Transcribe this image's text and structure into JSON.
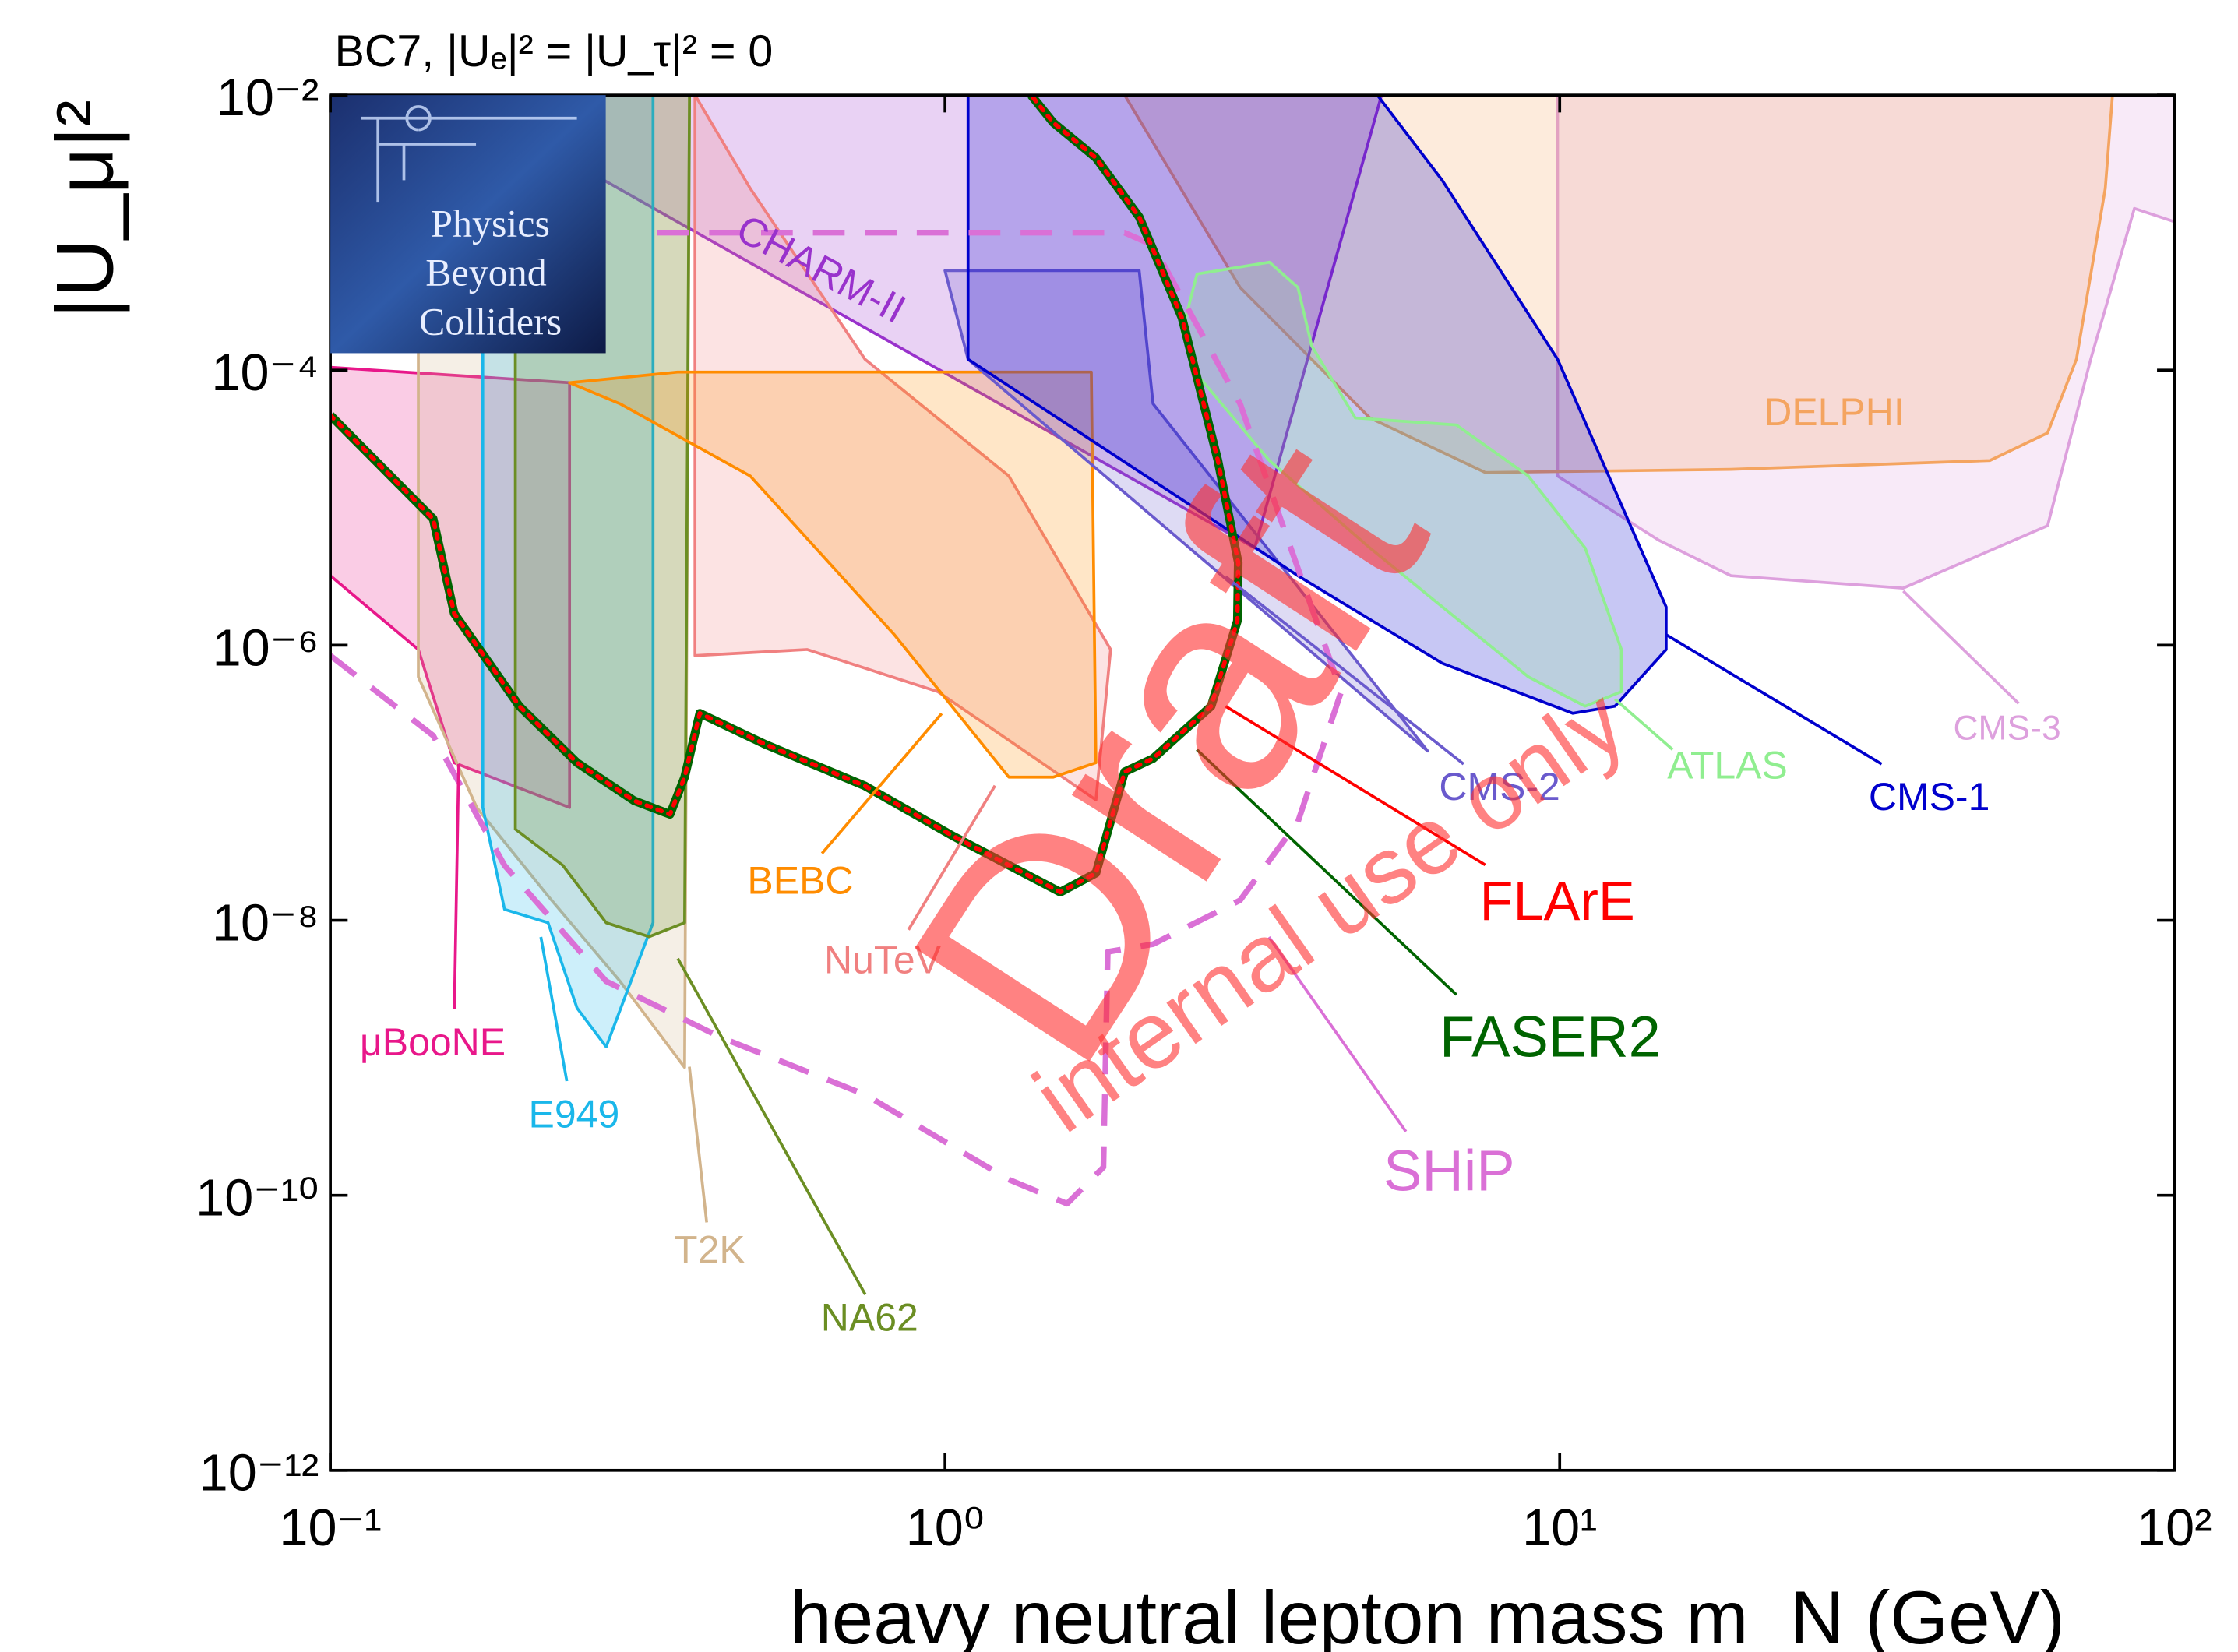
{
  "chart_data": {
    "type": "region",
    "title": "BC7, |Uₑ|² = |U_τ|² = 0",
    "y_label": "|U_μ|²",
    "x_label": "heavy neutral lepton mass m_N (GeV)",
    "xscale": "log",
    "yscale": "log",
    "xlim": [
      0.1,
      100
    ],
    "ylim": [
      1e-12,
      0.01
    ],
    "xticks": [
      {
        "value": 0.1,
        "label": "10⁻¹"
      },
      {
        "value": 1,
        "label": "10⁰"
      },
      {
        "value": 10,
        "label": "10¹"
      },
      {
        "value": 100,
        "label": "10²"
      }
    ],
    "yticks": [
      {
        "value": 1e-12,
        "label": "10⁻¹²"
      },
      {
        "value": 1e-10,
        "label": "10⁻¹⁰"
      },
      {
        "value": 1e-08,
        "label": "10⁻⁸"
      },
      {
        "value": 1e-06,
        "label": "10⁻⁶"
      },
      {
        "value": 0.0001,
        "label": "10⁻⁴"
      },
      {
        "value": 0.01,
        "label": "10⁻²"
      }
    ],
    "watermark": [
      "Draft",
      "internal use only"
    ],
    "logo": [
      "Physics",
      "Beyond",
      "Colliders"
    ],
    "series": [
      {
        "name": "CMS-3",
        "color": "#dda0dd",
        "fill": true,
        "linestyle": "solid",
        "x": [
          9.92,
          100,
          100,
          86.1,
          73.1,
          62.2,
          36.2,
          19.0,
          14.5,
          9.92
        ],
        "values": [
          0.01,
          0.01,
          0.0012,
          0.0015,
          0.00012,
          7.4e-06,
          2.6e-06,
          3.2e-06,
          5.8e-06,
          1.7e-05
        ]
      },
      {
        "name": "DELPHI",
        "color": "#f4a460",
        "fill": true,
        "linestyle": "solid",
        "x": [
          1.96,
          79.3,
          77.2,
          69.3,
          62.2,
          50.1,
          19.0,
          7.57,
          4.91,
          3.02
        ],
        "values": [
          0.01,
          0.01,
          0.0021,
          0.00012,
          3.5e-05,
          2.2e-05,
          1.9e-05,
          1.8e-05,
          4.5e-05,
          0.0004
        ]
      },
      {
        "name": "CHARM-II",
        "color": "#9932cc",
        "fill": true,
        "linestyle": "solid",
        "x": [
          0.252,
          0.252,
          3.19,
          5.13
        ],
        "values": [
          0.01,
          0.0031,
          5.1e-06,
          0.01
        ]
      },
      {
        "name": "NuTeV",
        "color": "#f08080",
        "fill": true,
        "linestyle": "solid",
        "x": [
          0.392,
          0.392,
          0.597,
          0.973,
          1.76,
          1.86,
          1.27,
          0.741,
          0.482
        ],
        "values": [
          0.01,
          8.4e-07,
          9.3e-07,
          4.6e-07,
          7.5e-08,
          9.3e-07,
          1.7e-05,
          0.00012,
          0.0021
        ]
      },
      {
        "name": "μBooNE",
        "color": "#e8178a",
        "fill": true,
        "linestyle": "solid",
        "x": [
          0.1,
          0.245,
          0.245,
          0.159,
          0.139,
          0.1
        ],
        "values": [
          0.000105,
          8.1e-05,
          6.6e-08,
          1.4e-07,
          9.3e-07,
          3.2e-06
        ]
      },
      {
        "name": "T2K",
        "color": "#d2b48c",
        "fill": true,
        "linestyle": "solid",
        "x": [
          0.139,
          0.139,
          0.173,
          0.226,
          0.296,
          0.377,
          0.384
        ],
        "values": [
          0.01,
          5.9e-07,
          6.6e-08,
          1.5e-08,
          3.6e-09,
          8.5e-10,
          0.01
        ]
      },
      {
        "name": "E949",
        "color": "#1ab7ea",
        "fill": true,
        "linestyle": "solid",
        "x": [
          0.177,
          0.177,
          0.192,
          0.226,
          0.252,
          0.281,
          0.335,
          0.335
        ],
        "values": [
          0.01,
          6.6e-08,
          1.2e-08,
          9.6e-09,
          2.3e-09,
          1.2e-09,
          9.6e-09,
          0.01
        ]
      },
      {
        "name": "NA62",
        "color": "#6b8e23",
        "fill": true,
        "linestyle": "solid",
        "x": [
          0.2,
          0.2,
          0.239,
          0.281,
          0.33,
          0.377,
          0.384
        ],
        "values": [
          0.01,
          4.6e-08,
          2.5e-08,
          9.6e-09,
          7.6e-09,
          9.6e-09,
          0.01
        ]
      },
      {
        "name": "BEBC",
        "color": "#ff8c00",
        "fill": true,
        "linestyle": "solid",
        "x": [
          0.245,
          0.367,
          1.73,
          1.76,
          1.5,
          1.27,
          0.826,
          0.482,
          0.296
        ],
        "values": [
          8.1e-05,
          9.7e-05,
          9.7e-05,
          1.4e-07,
          1.1e-07,
          1.1e-07,
          1.2e-06,
          1.7e-05,
          5.7e-05
        ]
      },
      {
        "name": "CMS-2",
        "color": "#6a5acd",
        "fill": true,
        "linestyle": "solid",
        "x": [
          1.0,
          2.07,
          2.18,
          6.1,
          1.09
        ],
        "values": [
          0.00053,
          0.00053,
          5.7e-05,
          1.7e-07,
          0.00012
        ]
      },
      {
        "name": "CMS-1",
        "color": "#0000cd",
        "fill": true,
        "linestyle": "solid",
        "x": [
          1.09,
          5.05,
          6.44,
          9.92,
          14.9,
          14.9,
          12.3,
          10.5,
          6.44,
          3.75,
          1.09
        ],
        "values": [
          0.01,
          0.01,
          0.0024,
          0.00012,
          1.9e-06,
          9.3e-07,
          3.6e-07,
          3.2e-07,
          7.4e-07,
          3.2e-06,
          0.00012
        ]
      },
      {
        "name": "ATLAS",
        "color": "#90ee90",
        "fill": true,
        "linestyle": "solid",
        "x": [
          2.43,
          2.57,
          3.37,
          3.75,
          3.95,
          4.65,
          6.79,
          8.89,
          11.0,
          12.6,
          12.6,
          11.0,
          8.89,
          4.91,
          3.37,
          2.57
        ],
        "values": [
          0.00019,
          0.0005,
          0.00061,
          0.0004,
          0.00015,
          4.5e-05,
          4e-05,
          1.7e-05,
          5.1e-06,
          9.3e-07,
          4.6e-07,
          3.6e-07,
          5.9e-07,
          5.1e-06,
          2.2e-05,
          9.3e-05
        ]
      },
      {
        "name": "SHiP",
        "color": "#da70d6",
        "fill": false,
        "linestyle": "dashed",
        "x": [
          0.1,
          0.147,
          0.192,
          0.281,
          0.433,
          0.741,
          1.27,
          1.58,
          1.81,
          1.84,
          2.18,
          3.02,
          3.75,
          4.41,
          3.02,
          2.18,
          1.96,
          0.33
        ],
        "values": [
          8.4e-07,
          2.2e-07,
          2.5e-08,
          3.6e-09,
          1.4e-09,
          5.4e-10,
          1.3e-10,
          8.7e-11,
          1.6e-10,
          5.9e-09,
          6.7e-09,
          1.4e-08,
          5.2e-08,
          4.6e-07,
          5.7e-05,
          0.00081,
          0.001,
          0.001
        ]
      },
      {
        "name": "FASER2",
        "color": "#006400",
        "fill": false,
        "linestyle": "solid",
        "x": [
          0.1,
          0.147,
          0.159,
          0.203,
          0.252,
          0.312,
          0.357,
          0.377,
          0.399,
          0.51,
          0.74,
          1.03,
          1.54,
          1.76,
          1.96,
          2.18,
          2.71,
          2.99,
          3.0,
          2.78,
          2.43,
          2.07,
          1.76,
          1.5,
          1.38
        ],
        "values": [
          4.7e-05,
          8.3e-06,
          1.7e-06,
          3.6e-07,
          1.4e-07,
          7.4e-08,
          5.9e-08,
          1.1e-07,
          3.2e-07,
          1.9e-07,
          9.5e-08,
          4.1e-08,
          1.6e-08,
          2.2e-08,
          1.2e-07,
          1.5e-07,
          3.6e-07,
          1.5e-06,
          4e-06,
          2.2e-05,
          0.00024,
          0.0013,
          0.0035,
          0.0063,
          0.01
        ]
      },
      {
        "name": "FLArE",
        "color": "#ff0000",
        "fill": false,
        "linestyle": "dotted",
        "x": [
          0.1,
          0.147,
          0.159,
          0.203,
          0.252,
          0.312,
          0.357,
          0.377,
          0.399,
          0.51,
          0.74,
          1.03,
          1.54,
          1.76,
          1.96,
          2.18,
          2.71,
          2.99,
          3.0,
          2.78,
          2.43,
          2.07,
          1.76,
          1.5,
          1.38
        ],
        "values": [
          4.7e-05,
          8.3e-06,
          1.7e-06,
          3.6e-07,
          1.4e-07,
          7.4e-08,
          5.9e-08,
          1.1e-07,
          3.2e-07,
          1.9e-07,
          9.5e-08,
          4.1e-08,
          1.6e-08,
          2.2e-08,
          1.2e-07,
          1.5e-07,
          3.6e-07,
          1.5e-06,
          4e-06,
          2.2e-05,
          0.00024,
          0.0013,
          0.0035,
          0.0063,
          0.01
        ]
      }
    ]
  }
}
